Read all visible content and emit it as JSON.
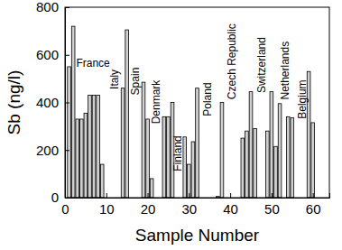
{
  "chart_data": {
    "type": "bar",
    "x_label": "Sample Number",
    "y_label": "Sb (ng/l)",
    "x": [
      1,
      2,
      3,
      4,
      5,
      6,
      7,
      8,
      9,
      14,
      15,
      19,
      20,
      21,
      24,
      25,
      26,
      29,
      30,
      31,
      32,
      37,
      38,
      43,
      44,
      45,
      46,
      49,
      50,
      51,
      52,
      54,
      55,
      59,
      60
    ],
    "values": [
      550,
      720,
      330,
      330,
      355,
      430,
      430,
      430,
      140,
      460,
      705,
      485,
      330,
      80,
      340,
      340,
      400,
      255,
      140,
      235,
      460,
      5,
      400,
      250,
      280,
      445,
      290,
      280,
      445,
      215,
      395,
      340,
      335,
      530,
      315
    ],
    "color": "#d0d0d0",
    "xlim": [
      0,
      64
    ],
    "xticks": [
      0,
      10,
      20,
      30,
      40,
      50,
      60
    ],
    "ylim": [
      0,
      800
    ],
    "yticks": [
      0,
      200,
      400,
      600,
      800
    ],
    "annotations": [
      {
        "text": "France",
        "x": 6.8,
        "y": 565,
        "orientation": "horizontal"
      },
      {
        "text": "Italy",
        "x": 12,
        "y": 497,
        "orientation": "vertical"
      },
      {
        "text": "Spain",
        "x": 17,
        "y": 489,
        "orientation": "vertical"
      },
      {
        "text": "Denmark",
        "x": 22,
        "y": 402,
        "orientation": "vertical"
      },
      {
        "text": "Finland",
        "x": 27.3,
        "y": 186,
        "orientation": "vertical"
      },
      {
        "text": "Poland",
        "x": 34.5,
        "y": 413,
        "orientation": "vertical"
      },
      {
        "text": "Czech Republic",
        "x": 40.4,
        "y": 572,
        "orientation": "vertical"
      },
      {
        "text": "Switzerland",
        "x": 47.6,
        "y": 557,
        "orientation": "vertical"
      },
      {
        "text": "Netherlands",
        "x": 53.3,
        "y": 534,
        "orientation": "vertical"
      },
      {
        "text": "Belgium",
        "x": 57.4,
        "y": 413,
        "orientation": "vertical"
      }
    ]
  }
}
